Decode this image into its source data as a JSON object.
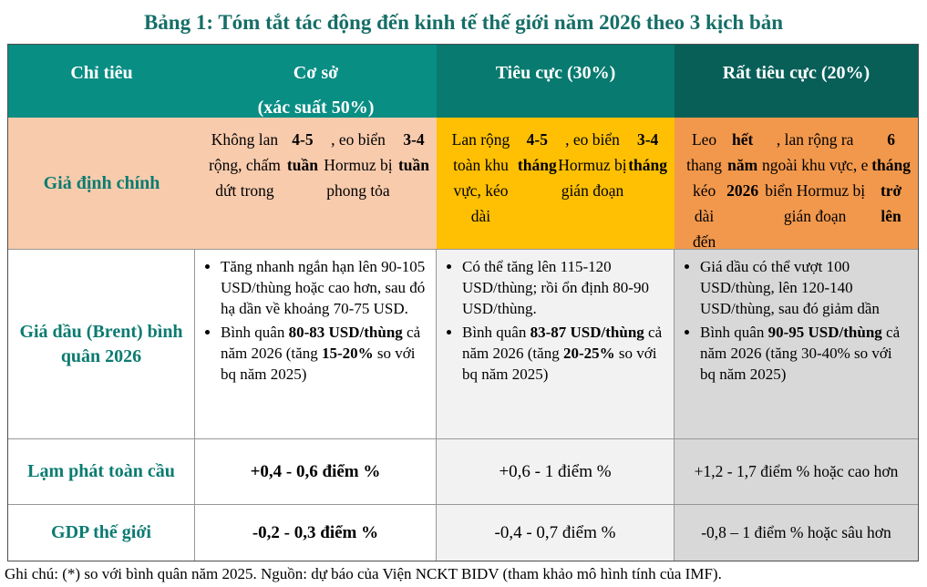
{
  "title": "Bảng 1: Tóm tắt tác động đến kinh tế thế giới năm 2026 theo 3 kịch bản",
  "colors": {
    "title_text": "#156E67",
    "header_bg_base": "#098E84",
    "header_bg_negative": "#087A6F",
    "header_bg_very_negative": "#075F58",
    "header_text": "#FFFFFF",
    "row_label_text": "#0B7B71",
    "assumption_base_bg": "#F8CBAD",
    "assumption_negative_bg": "#FFC003",
    "assumption_very_negative_bg": "#F2984C",
    "negative_col_bg": "#F2F2F2",
    "very_negative_col_bg": "#D8D8D8"
  },
  "table": {
    "header": {
      "col1": "Chỉ tiêu",
      "col2": "Cơ sở\n(xác suất 50%)",
      "col3": "Tiêu cực (30%)",
      "col4": "Rất tiêu cực (20%)"
    },
    "rows": [
      {
        "label": "Giả định chính",
        "base": [
          {
            "t": "Không lan rộng, chấm dứt trong "
          },
          {
            "t": "4-5 tuần",
            "b": true
          },
          {
            "t": ", eo biển Hormuz bị phong tỏa "
          },
          {
            "t": "3-4 tuần",
            "b": true
          }
        ],
        "negative": [
          {
            "t": "Lan rộng toàn khu vực, kéo dài "
          },
          {
            "t": "4-5 tháng",
            "b": true
          },
          {
            "t": ", eo biển Hormuz bị gián đoạn "
          },
          {
            "t": "3-4 tháng",
            "b": true
          }
        ],
        "very_negative": [
          {
            "t": "Leo thang kéo dài đến "
          },
          {
            "t": "hết năm 2026",
            "b": true
          },
          {
            "t": ", lan rộng ra ngoài khu vực, e biển Hormuz bị gián đoạn "
          },
          {
            "t": "6 tháng trở lên",
            "b": true
          }
        ]
      },
      {
        "label": "Giá dầu (Brent) bình quân 2026",
        "base_bullets": [
          [
            {
              "t": "Tăng nhanh ngắn hạn lên 90-105 USD/thùng hoặc cao hơn, sau đó hạ dần về khoảng 70-75 USD."
            }
          ],
          [
            {
              "t": "Bình quân "
            },
            {
              "t": "80-83 USD/thùng",
              "b": true
            },
            {
              "t": " cả năm 2026 (tăng "
            },
            {
              "t": "15-20%",
              "b": true
            },
            {
              "t": " so với bq năm 2025)"
            }
          ]
        ],
        "negative_bullets": [
          [
            {
              "t": "Có thể tăng lên 115-120 USD/thùng; rồi ổn định 80-90 USD/thùng."
            }
          ],
          [
            {
              "t": "Bình quân "
            },
            {
              "t": "83-87 USD/thùng",
              "b": true
            },
            {
              "t": " cả năm 2026 (tăng "
            },
            {
              "t": "20-25%",
              "b": true
            },
            {
              "t": " so với bq năm 2025)"
            }
          ]
        ],
        "very_negative_bullets": [
          [
            {
              "t": "Giá dầu có thể vượt 100 USD/thùng, lên 120-140 USD/thùng, sau đó giảm dần"
            }
          ],
          [
            {
              "t": "Bình quân "
            },
            {
              "t": "90-95 USD/thùng",
              "b": true
            },
            {
              "t": " cả năm 2026 (tăng 30-40% so với bq năm 2025)"
            }
          ]
        ]
      },
      {
        "label": "Lạm phát toàn cầu",
        "base": [
          {
            "t": "+0,4 - 0,6 điểm %",
            "b": true
          }
        ],
        "negative": [
          {
            "t": "+0,6 - 1 điểm %"
          }
        ],
        "very_negative": [
          {
            "t": "+1,2 - 1,7 điểm % hoặc cao hơn"
          }
        ]
      },
      {
        "label": "GDP thế giới",
        "base": [
          {
            "t": "-0,2 - 0,3 điểm %",
            "b": true
          }
        ],
        "negative": [
          {
            "t": "-0,4 - 0,7 điểm %"
          }
        ],
        "very_negative": [
          {
            "t": "-0,8 – 1 điểm % hoặc sâu hơn"
          }
        ]
      }
    ]
  },
  "footnote": "Ghi chú: (*) so với bình quân năm 2025. Nguồn: dự báo của Viện NCKT BIDV (tham khảo mô hình tính của IMF)."
}
